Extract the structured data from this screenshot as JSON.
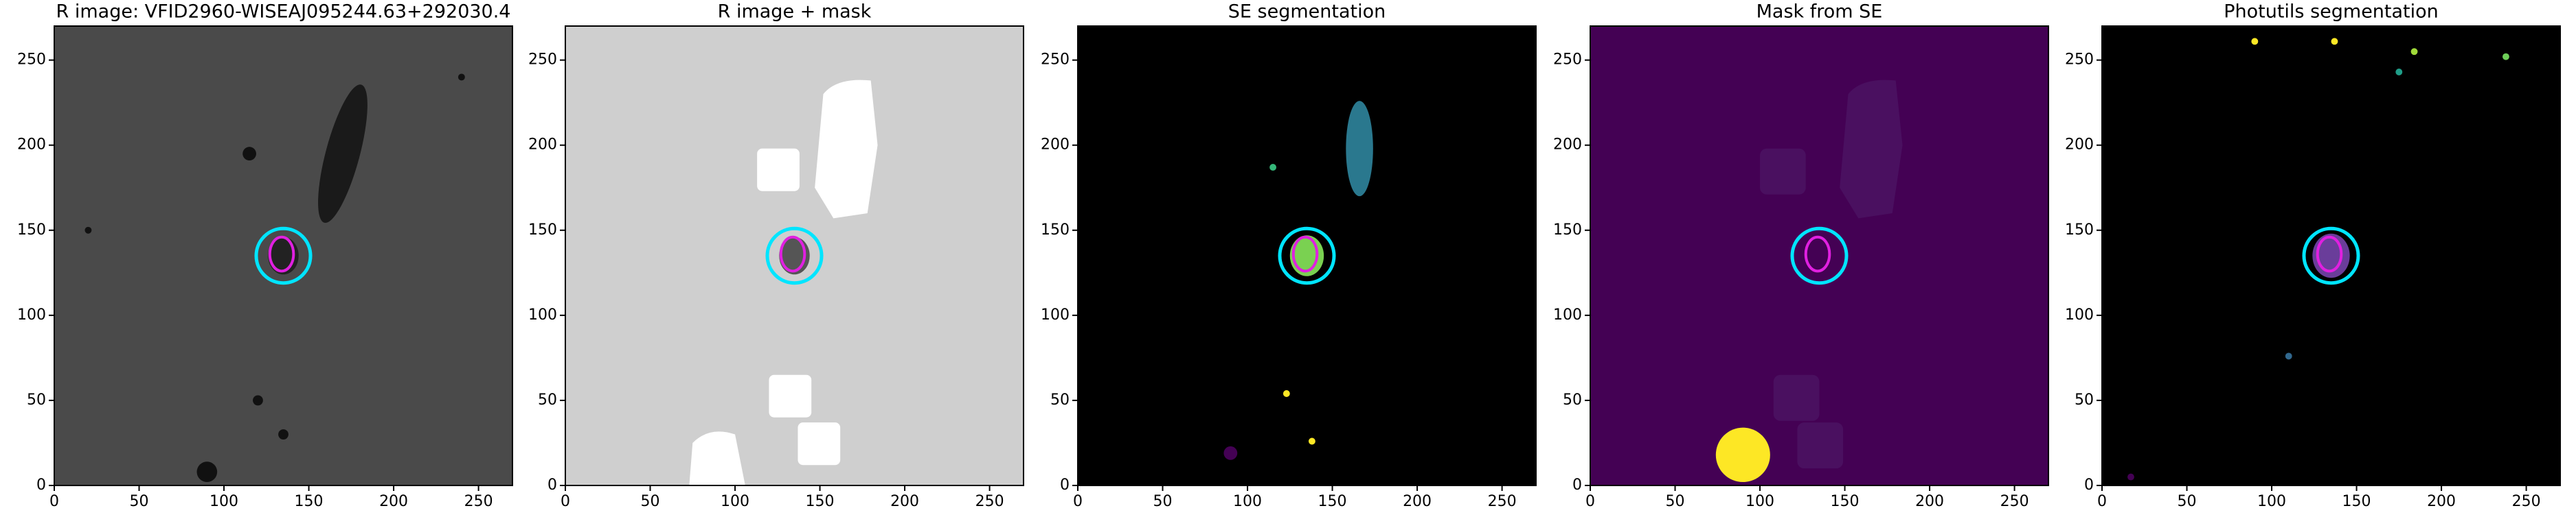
{
  "chart_data": [
    {
      "type": "image",
      "title": "R image: VFID2960-WISEAJ095244.63+292030.4",
      "xlim": [
        0,
        270
      ],
      "ylim": [
        0,
        270
      ],
      "xticks": [
        0,
        50,
        100,
        150,
        200,
        250
      ],
      "yticks": [
        0,
        50,
        100,
        150,
        200,
        250
      ],
      "circle": {
        "x": 135,
        "y": 135,
        "radius": 16,
        "color": "#00e5ff"
      },
      "ellipse": {
        "x": 134,
        "y": 136,
        "rx": 7,
        "ry": 10,
        "color": "#e020e0"
      }
    },
    {
      "type": "image",
      "title": "R image + mask",
      "xlim": [
        0,
        270
      ],
      "ylim": [
        0,
        270
      ],
      "xticks": [
        0,
        50,
        100,
        150,
        200,
        250
      ],
      "yticks": [
        0,
        50,
        100,
        150,
        200,
        250
      ],
      "circle": {
        "x": 135,
        "y": 135,
        "radius": 16,
        "color": "#00e5ff"
      },
      "ellipse": {
        "x": 134,
        "y": 136,
        "rx": 7,
        "ry": 10,
        "color": "#e020e0"
      }
    },
    {
      "type": "image",
      "title": "SE segmentation",
      "xlim": [
        0,
        270
      ],
      "ylim": [
        0,
        270
      ],
      "xticks": [
        0,
        50,
        100,
        150,
        200,
        250
      ],
      "yticks": [
        0,
        50,
        100,
        150,
        200,
        250
      ],
      "circle": {
        "x": 135,
        "y": 135,
        "radius": 16,
        "color": "#00e5ff"
      },
      "ellipse": {
        "x": 134,
        "y": 136,
        "rx": 7,
        "ry": 10,
        "color": "#e020e0"
      }
    },
    {
      "type": "image",
      "title": "Mask from SE",
      "xlim": [
        0,
        270
      ],
      "ylim": [
        0,
        270
      ],
      "xticks": [
        0,
        50,
        100,
        150,
        200,
        250
      ],
      "yticks": [
        0,
        50,
        100,
        150,
        200,
        250
      ],
      "circle": {
        "x": 135,
        "y": 135,
        "radius": 16,
        "color": "#00e5ff"
      },
      "ellipse": {
        "x": 134,
        "y": 136,
        "rx": 7,
        "ry": 10,
        "color": "#e020e0"
      }
    },
    {
      "type": "image",
      "title": "Photutils segmentation",
      "xlim": [
        0,
        270
      ],
      "ylim": [
        0,
        270
      ],
      "xticks": [
        0,
        50,
        100,
        150,
        200,
        250
      ],
      "yticks": [
        0,
        50,
        100,
        150,
        200,
        250
      ],
      "circle": {
        "x": 135,
        "y": 135,
        "radius": 16,
        "color": "#00e5ff"
      },
      "ellipse": {
        "x": 134,
        "y": 136,
        "rx": 7,
        "ry": 10,
        "color": "#e020e0"
      }
    }
  ]
}
